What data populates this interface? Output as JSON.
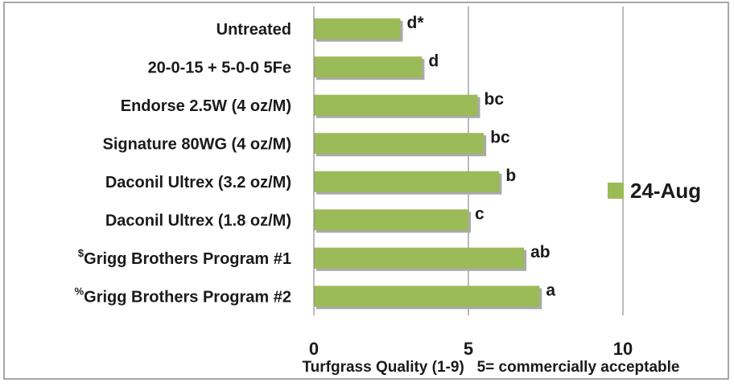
{
  "chart_data": {
    "type": "bar",
    "orientation": "horizontal",
    "categories": [
      {
        "prefix": "",
        "label": "Untreated"
      },
      {
        "prefix": "",
        "label": "20-0-15 + 5-0-0 5Fe"
      },
      {
        "prefix": "",
        "label": "Endorse 2.5W (4 oz/M)"
      },
      {
        "prefix": "",
        "label": "Signature 80WG (4 oz/M)"
      },
      {
        "prefix": "",
        "label": "Daconil Ultrex (3.2 oz/M)"
      },
      {
        "prefix": "",
        "label": "Daconil Ultrex (1.8 oz/M)"
      },
      {
        "prefix": "$",
        "label": "Grigg Brothers Program #1"
      },
      {
        "prefix": "%",
        "label": "Grigg Brothers Program #2"
      }
    ],
    "series": [
      {
        "name": "24-Aug",
        "color": "#9bbb59",
        "values": [
          2.8,
          3.5,
          5.3,
          5.5,
          6.0,
          5.0,
          6.8,
          7.3
        ],
        "labels": [
          "d*",
          "d",
          "bc",
          "bc",
          "b",
          "c",
          "ab",
          "a"
        ]
      }
    ],
    "xlabel": "Turfgrass Quality (1-9)   5= commercially acceptable",
    "xlim": [
      0,
      10
    ],
    "xticks": [
      "0",
      "5",
      "10"
    ],
    "grid": "vertical",
    "legend": "right"
  }
}
